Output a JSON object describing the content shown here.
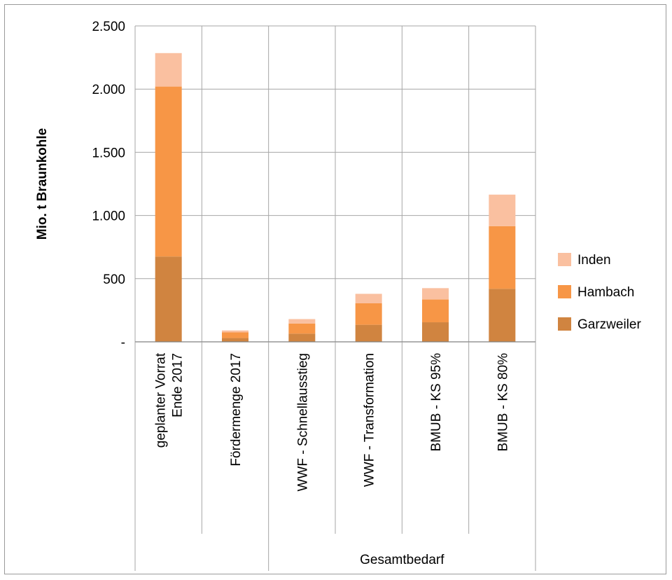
{
  "chart_data": {
    "type": "bar",
    "stacked": true,
    "ylabel": "Mio. t Braunkohle",
    "ylim": [
      0,
      2500
    ],
    "yticks": [
      "-",
      "500",
      "1.000",
      "1.500",
      "2.000",
      "2.500"
    ],
    "ytick_values": [
      0,
      500,
      1000,
      1500,
      2000,
      2500
    ],
    "grid": true,
    "legend_position": "right",
    "categories": [
      [
        "geplanter Vorrat",
        "Ende 2017"
      ],
      [
        "Fördermenge 2017"
      ],
      [
        "WWF - Schnellausstieg"
      ],
      [
        "WWF - Transformation"
      ],
      [
        "BMUB - KS 95%"
      ],
      [
        "BMUB - KS 80%"
      ]
    ],
    "group_label": "Gesamtbedarf",
    "series": [
      {
        "name": "Garzweiler",
        "color": "#d08440",
        "values": [
          675,
          30,
          65,
          135,
          155,
          420
        ]
      },
      {
        "name": "Hambach",
        "color": "#f79646",
        "values": [
          1345,
          45,
          80,
          170,
          180,
          495
        ]
      },
      {
        "name": "Inden",
        "color": "#fac0a0",
        "values": [
          265,
          15,
          35,
          75,
          90,
          250
        ]
      }
    ]
  }
}
